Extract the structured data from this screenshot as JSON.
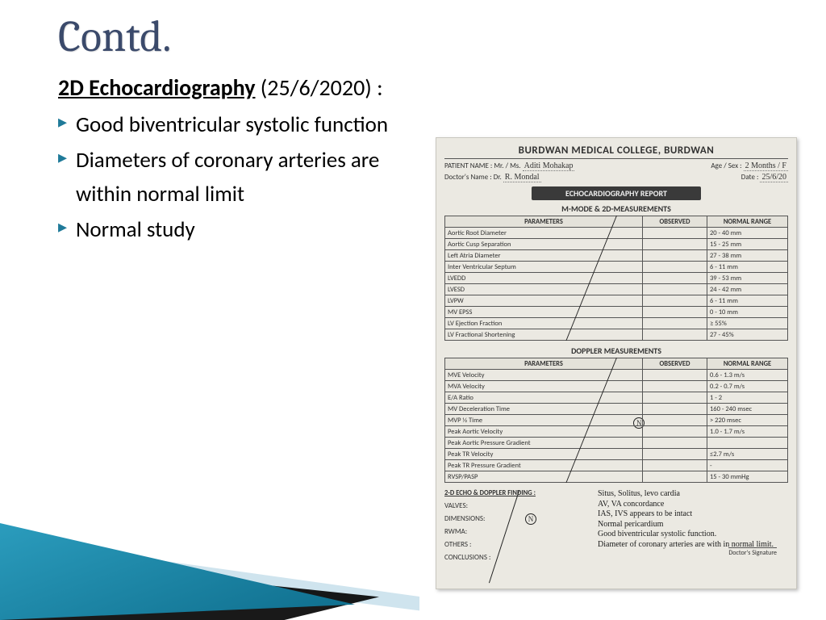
{
  "slide": {
    "title": "Contd.",
    "heading_bold": "2D Echocardiography",
    "heading_date": " (25/6/2020) :",
    "bullets": [
      "Good biventricular systolic function",
      "Diameters of coronary arteries are within normal limit",
      "Normal study"
    ]
  },
  "report": {
    "hospital": "BURDWAN MEDICAL COLLEGE, BURDWAN",
    "patient_label": "PATIENT NAME : Mr. / Ms.",
    "patient_name": "Aditi Mohakap",
    "age_label": "Age / Sex :",
    "age_sex": "2 Months / F",
    "doctor_label": "Doctor's Name : Dr.",
    "doctor_name": "R. Mondal",
    "date_label": "Date :",
    "date": "25/6/20",
    "titlebox": "ECHOCARDIOGRAPHY REPORT",
    "section1": "M-MODE & 2D-MEASUREMENTS",
    "headers": {
      "param": "PARAMETERS",
      "obs": "OBSERVED",
      "nr": "NORMAL RANGE"
    },
    "mmode": [
      {
        "p": "Aortic Root Diameter",
        "nr": "20 - 40 mm"
      },
      {
        "p": "Aortic Cusp Separation",
        "nr": "15 - 25 mm"
      },
      {
        "p": "Left Atria Diameter",
        "nr": "27 - 38 mm"
      },
      {
        "p": "Inter Ventricular Septum",
        "nr": "6 - 11 mm"
      },
      {
        "p": "LVEDD",
        "nr": "39 - 53 mm"
      },
      {
        "p": "LVESD",
        "nr": "24 - 42 mm"
      },
      {
        "p": "LVPW",
        "nr": "6 - 11 mm"
      },
      {
        "p": "MV EPSS",
        "nr": "0 - 10 mm"
      },
      {
        "p": "LV Ejection Fraction",
        "nr": "≥ 55%"
      },
      {
        "p": "LV Fractional Shortening",
        "nr": "27 - 45%"
      }
    ],
    "section2": "DOPPLER MEASUREMENTS",
    "doppler": [
      {
        "p": "MVE Velocity",
        "nr": "0.6 - 1.3 m/s"
      },
      {
        "p": "MVA Velocity",
        "nr": "0.2 - 0.7 m/s"
      },
      {
        "p": "E/A Ratio",
        "nr": "1 - 2"
      },
      {
        "p": "MV Deceleration Time",
        "nr": "160 - 240 msec"
      },
      {
        "p": "MVP ½ Time",
        "nr": "> 220 msec"
      },
      {
        "p": "Peak Aortic Velocity",
        "nr": "1.0 - 1.7 m/s"
      },
      {
        "p": "Peak Aortic Pressure Gradient",
        "nr": ""
      },
      {
        "p": "Peak TR Velocity",
        "nr": "≤2.7 m/s"
      },
      {
        "p": "Peak TR Pressure Gradient",
        "nr": "-"
      },
      {
        "p": "RVSP/PASP",
        "nr": "15 - 30 mmHg"
      }
    ],
    "obs_mark": "N",
    "finding_title": "2-D ECHO & DOPPLER FINDING :",
    "find_rows": [
      "VALVES:",
      "DIMENSIONS:",
      "RWMA:",
      "OTHERS :",
      "CONCLUSIONS :"
    ],
    "hand_notes": [
      "Situs, Solitus, levo cardia",
      "AV, VA concordance",
      "IAS, IVS appears to be intact",
      "Normal pericardium",
      "Good biventricular systolic function.",
      "Diameter of coronary arteries are with in normal limit."
    ],
    "doc_sig": "Doctor's Signature"
  },
  "colors": {
    "title": "#3b4a6b",
    "bullet": "#1f7a99",
    "teal1": "#2fa3c4",
    "teal2": "#0e6d8c",
    "lightblue": "#cfe4ee",
    "paper": "#ebe9e2",
    "titlebox": "#3a3a3a"
  }
}
